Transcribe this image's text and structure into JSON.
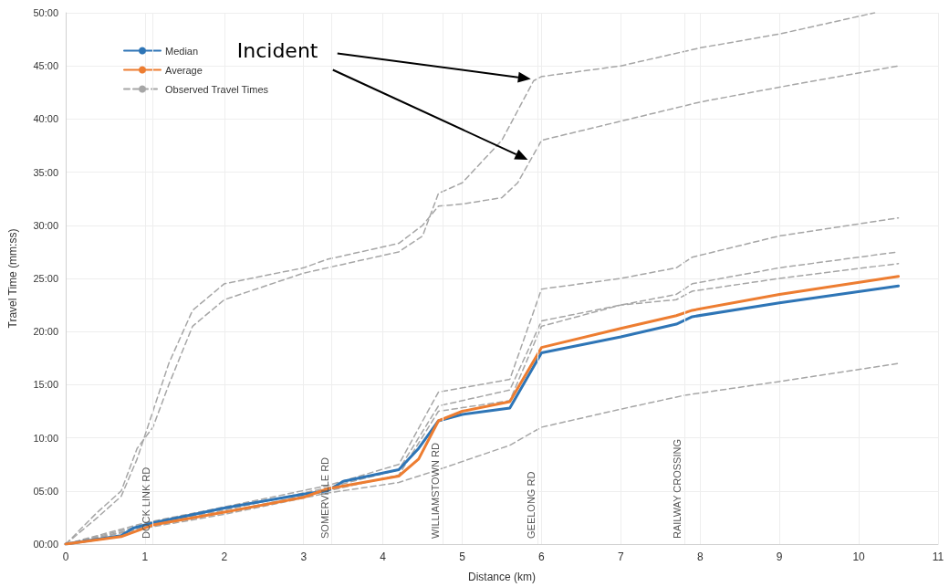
{
  "chart_data": {
    "type": "line",
    "xlabel": "Distance (km)",
    "ylabel": "Travel Time (mm:ss)",
    "xlim": [
      0,
      11
    ],
    "xticks": [
      0,
      1,
      2,
      3,
      4,
      5,
      6,
      7,
      8,
      9,
      10,
      11
    ],
    "ylim": [
      0,
      50
    ],
    "yticks": [
      {
        "value": 0,
        "label": "00:00"
      },
      {
        "value": 5,
        "label": "05:00"
      },
      {
        "value": 10,
        "label": "10:00"
      },
      {
        "value": 15,
        "label": "15:00"
      },
      {
        "value": 20,
        "label": "20:00"
      },
      {
        "value": 25,
        "label": "25:00"
      },
      {
        "value": 30,
        "label": "30:00"
      },
      {
        "value": 35,
        "label": "35:00"
      },
      {
        "value": 40,
        "label": "40:00"
      },
      {
        "value": 45,
        "label": "45:00"
      },
      {
        "value": 50,
        "label": "50:00"
      }
    ],
    "grid": true,
    "legend": "top left",
    "marker": "none",
    "annotations": [
      "Incident"
    ],
    "ref_lines": [
      {
        "axis": "x",
        "value": 1.1,
        "label": "DOCK LINK RD",
        "color": "#eeeeee"
      },
      {
        "axis": "x",
        "value": 3.35,
        "label": "SOMERVILLE RD",
        "color": "#eeeeee"
      },
      {
        "axis": "x",
        "value": 4.75,
        "label": "WILLIAMSTOWN RD",
        "color": "#eeeeee"
      },
      {
        "axis": "x",
        "value": 5.95,
        "label": "GEELONG RD",
        "color": "#eeeeee"
      },
      {
        "axis": "x",
        "value": 7.8,
        "label": "RAILWAY CROSSING",
        "color": "#eeeeee"
      }
    ],
    "series": [
      {
        "name": "Median",
        "color": "#2e75b6",
        "line_style": "solid",
        "x": [
          0,
          0.7,
          0.85,
          1.1,
          2,
          3,
          3.3,
          3.5,
          4.2,
          4.45,
          4.7,
          5,
          5.6,
          6,
          7,
          7.7,
          7.9,
          9,
          10.5
        ],
        "values": [
          0,
          0.8,
          1.5,
          2,
          3.4,
          4.7,
          5,
          5.9,
          7,
          9,
          11.6,
          12.2,
          12.8,
          18,
          19.5,
          20.7,
          21.4,
          22.7,
          24.3
        ]
      },
      {
        "name": "Average",
        "color": "#ed7d31",
        "line_style": "solid",
        "x": [
          0,
          0.7,
          1.1,
          2,
          3,
          3.3,
          4.2,
          4.45,
          4.7,
          5,
          5.6,
          6,
          7,
          7.7,
          7.9,
          9,
          10.5
        ],
        "values": [
          0,
          0.7,
          1.8,
          3,
          4.4,
          5.2,
          6.4,
          8,
          11.6,
          12.5,
          13.4,
          18.5,
          20.3,
          21.5,
          22,
          23.5,
          25.2
        ]
      },
      {
        "name": "Observed Travel Times",
        "color": "#a6a6a6",
        "line_style": "dashed",
        "x": [
          0,
          0.4,
          0.7,
          0.9,
          1.1,
          1.3,
          1.6,
          2,
          3,
          3.3,
          4.2,
          4.5,
          4.7,
          5,
          5.5,
          5.9,
          6,
          7,
          8,
          9,
          10.2
        ],
        "values": [
          0,
          3,
          5,
          9,
          11,
          15,
          20.5,
          23,
          25.5,
          26,
          27.5,
          29,
          33,
          34,
          38,
          43.6,
          44,
          45,
          46.7,
          48,
          50
        ]
      },
      {
        "color": "#a6a6a6",
        "line_style": "dashed",
        "x": [
          0,
          0.4,
          0.7,
          0.9,
          1.1,
          1.3,
          1.6,
          2,
          3,
          3.3,
          4.2,
          4.5,
          4.7,
          5,
          5.5,
          5.7,
          6,
          7,
          8,
          9,
          10.5
        ],
        "values": [
          0,
          2.5,
          4.5,
          8,
          12.5,
          17,
          22,
          24.5,
          26,
          26.8,
          28.3,
          30,
          31.8,
          32,
          32.6,
          34,
          38,
          39.8,
          41.6,
          43,
          45
        ]
      },
      {
        "color": "#a6a6a6",
        "line_style": "dashed",
        "x": [
          0,
          1,
          2,
          3.3,
          4.2,
          4.7,
          5.6,
          6,
          7,
          7.7,
          7.9,
          9,
          10.5
        ],
        "values": [
          0,
          2,
          3.5,
          5.5,
          7.5,
          14.3,
          15.5,
          24,
          25,
          26,
          27,
          29,
          30.7
        ]
      },
      {
        "color": "#a6a6a6",
        "line_style": "dashed",
        "x": [
          0,
          1,
          2,
          3.3,
          4.2,
          4.7,
          5.6,
          6,
          7,
          7.7,
          7.9,
          9,
          10.5
        ],
        "values": [
          0,
          1.8,
          3.2,
          5.3,
          7,
          13,
          14.5,
          21,
          22.5,
          23.5,
          24.5,
          26,
          27.5
        ]
      },
      {
        "color": "#a6a6a6",
        "line_style": "dashed",
        "x": [
          0,
          1,
          2,
          3.3,
          4.2,
          4.7,
          5.6,
          6,
          7,
          7.7,
          7.9,
          9,
          10.5
        ],
        "values": [
          0,
          1.6,
          3,
          5,
          6.5,
          12.5,
          13.5,
          20.5,
          22.5,
          23,
          23.8,
          25,
          26.4
        ]
      },
      {
        "color": "#a6a6a6",
        "line_style": "dashed",
        "x": [
          0,
          1,
          2,
          3.3,
          4.2,
          4.7,
          5.6,
          6,
          7,
          7.8,
          9,
          10.5
        ],
        "values": [
          0,
          1.5,
          2.8,
          4.8,
          5.8,
          7,
          9.3,
          11,
          12.7,
          14,
          15.3,
          17
        ]
      }
    ]
  }
}
